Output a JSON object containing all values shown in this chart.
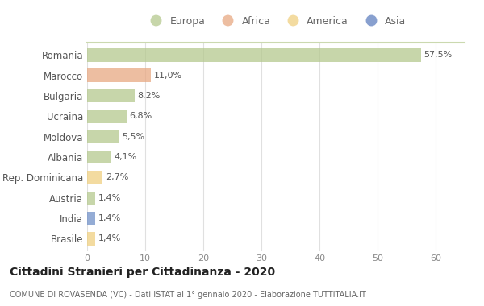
{
  "countries": [
    "Romania",
    "Marocco",
    "Bulgaria",
    "Ucraina",
    "Moldova",
    "Albania",
    "Rep. Dominicana",
    "Austria",
    "India",
    "Brasile"
  ],
  "values": [
    57.5,
    11.0,
    8.2,
    6.8,
    5.5,
    4.1,
    2.7,
    1.4,
    1.4,
    1.4
  ],
  "labels": [
    "57,5%",
    "11,0%",
    "8,2%",
    "6,8%",
    "5,5%",
    "4,1%",
    "2,7%",
    "1,4%",
    "1,4%",
    "1,4%"
  ],
  "colors": [
    "#b5c98e",
    "#e8a882",
    "#b5c98e",
    "#b5c98e",
    "#b5c98e",
    "#b5c98e",
    "#f0d080",
    "#b5c98e",
    "#7090c8",
    "#f0d080"
  ],
  "legend_labels": [
    "Europa",
    "Africa",
    "America",
    "Asia"
  ],
  "legend_colors": [
    "#b5c98e",
    "#e8a882",
    "#f0d080",
    "#6080c0"
  ],
  "title": "Cittadini Stranieri per Cittadinanza - 2020",
  "subtitle": "COMUNE DI ROVASENDA (VC) - Dati ISTAT al 1° gennaio 2020 - Elaborazione TUTTITALIA.IT",
  "xlim": [
    0,
    65
  ],
  "xticks": [
    0,
    10,
    20,
    30,
    40,
    50,
    60
  ],
  "background_color": "#ffffff",
  "grid_color": "#e0e0e0",
  "top_border_color": "#b5c98e",
  "bar_alpha": 0.75
}
